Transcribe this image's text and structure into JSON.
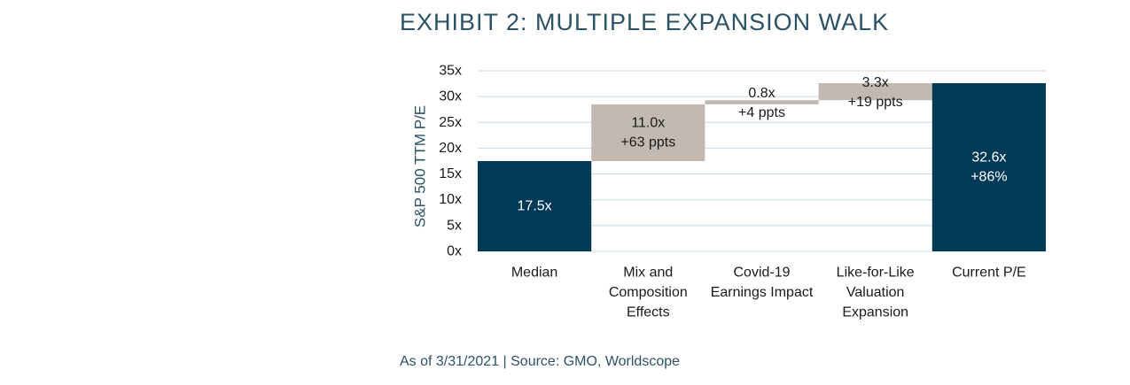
{
  "title": "EXHIBIT 2: MULTIPLE EXPANSION WALK",
  "source": "As of 3/31/2021 | Source: GMO, Worldscope",
  "colors": {
    "total": "#003a57",
    "delta": "#c2bab2",
    "grid": "#c8dbe4",
    "axis_text": "#1a1a1a",
    "title": "#2c5266"
  },
  "chart_data": {
    "type": "bar",
    "subtype": "waterfall",
    "title": "EXHIBIT 2: MULTIPLE EXPANSION WALK",
    "ylabel": "S&P 500 TTM P/E",
    "xlabel": "",
    "ylim": [
      0,
      35
    ],
    "yticks": [
      "0x",
      "5x",
      "10x",
      "15x",
      "20x",
      "25x",
      "30x",
      "35x"
    ],
    "grid": true,
    "categories": [
      [
        "Median"
      ],
      [
        "Mix and",
        "Composition",
        "Effects"
      ],
      [
        "Covid-19",
        "Earnings Impact"
      ],
      [
        "Like-for-Like",
        "Valuation",
        "Expansion"
      ],
      [
        "Current P/E"
      ]
    ],
    "bars": [
      {
        "kind": "total",
        "start": 0,
        "end": 17.5,
        "labels": [
          "17.5x"
        ]
      },
      {
        "kind": "delta",
        "start": 17.5,
        "end": 28.5,
        "labels": [
          "11.0x",
          "+63 ppts"
        ]
      },
      {
        "kind": "delta",
        "start": 28.5,
        "end": 29.3,
        "labels": [
          "0.8x",
          "+4 ppts"
        ]
      },
      {
        "kind": "delta",
        "start": 29.3,
        "end": 32.6,
        "labels": [
          "3.3x",
          "+19 ppts"
        ]
      },
      {
        "kind": "total",
        "start": 0,
        "end": 32.6,
        "labels": [
          "32.6x",
          "+86%"
        ]
      }
    ]
  }
}
